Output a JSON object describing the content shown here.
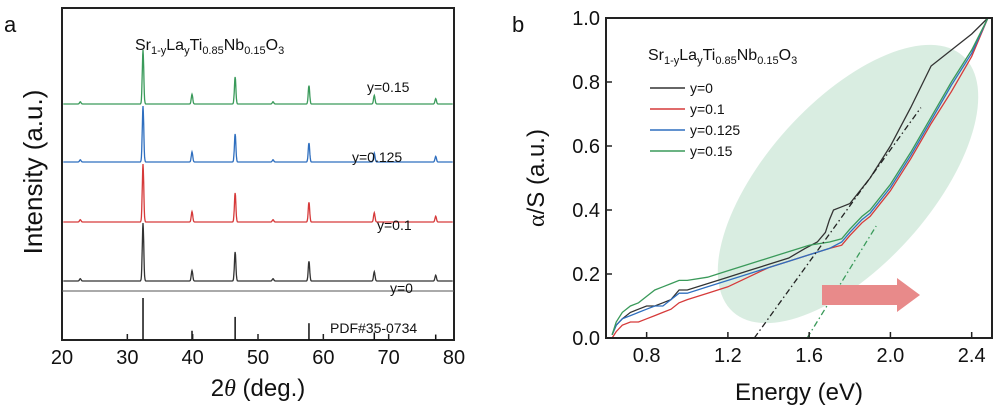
{
  "figure": {
    "panel_a_label": "a",
    "panel_b_label": "b"
  },
  "chart_data": [
    {
      "type": "line",
      "panel": "a",
      "title_parts": {
        "base": "Sr",
        "s1": "1-y",
        "m1": "La",
        "s2": "y",
        "m2": "Ti",
        "s3": "0.85",
        "m3": "Nb",
        "s4": "0.15",
        "m4": "O",
        "s5": "3"
      },
      "xlabel_theta": "θ",
      "xlabel_prefix": "2",
      "xlabel_suffix": " (deg.)",
      "ylabel": "Intensity (a.u.)",
      "xlim": [
        20,
        80
      ],
      "xticks": [
        "20",
        "30",
        "40",
        "50",
        "60",
        "70",
        "80"
      ],
      "grid": false,
      "peaks": [
        {
          "x": 22.8,
          "rel": 0.04
        },
        {
          "x": 32.4,
          "rel": 1.0
        },
        {
          "x": 39.9,
          "rel": 0.18
        },
        {
          "x": 46.5,
          "rel": 0.5
        },
        {
          "x": 52.3,
          "rel": 0.04
        },
        {
          "x": 57.8,
          "rel": 0.34
        },
        {
          "x": 67.8,
          "rel": 0.16
        },
        {
          "x": 77.2,
          "rel": 0.1
        }
      ],
      "series": [
        {
          "name": "y=0.15",
          "color": "#3a9a5a"
        },
        {
          "name": "y=0.125",
          "color": "#2f6fbf"
        },
        {
          "name": "y=0.1",
          "color": "#d63a3a"
        },
        {
          "name": "y=0",
          "color": "#333333"
        }
      ],
      "reference": {
        "name": "PDF#35-0734",
        "color": "#111111",
        "lines": [
          {
            "x": 32.4,
            "rel": 1.0
          },
          {
            "x": 39.9,
            "rel": 0.22
          },
          {
            "x": 46.5,
            "rel": 0.55
          },
          {
            "x": 57.8,
            "rel": 0.4
          },
          {
            "x": 67.8,
            "rel": 0.18
          },
          {
            "x": 77.2,
            "rel": 0.13
          }
        ]
      }
    },
    {
      "type": "line",
      "panel": "b",
      "title_parts": {
        "base": "Sr",
        "s1": "1-y",
        "m1": "La",
        "s2": "y",
        "m2": "Ti",
        "s3": "0.85",
        "m3": "Nb",
        "s4": "0.15",
        "m4": "O",
        "s5": "3"
      },
      "xlabel": "Energy (eV)",
      "ylabel_alpha": "α",
      "ylabel_rest": "/S (a.u.)",
      "xlim": [
        0.6,
        2.5
      ],
      "ylim": [
        0,
        1.0
      ],
      "xticks": [
        0.8,
        1.2,
        1.6,
        2.0,
        2.4
      ],
      "xtick_labels": [
        "0.8",
        "1.2",
        "1.6",
        "2.0",
        "2.4"
      ],
      "yticks": [
        0,
        0.2,
        0.4,
        0.6,
        0.8,
        1.0
      ],
      "ytick_labels": [
        "0.0",
        "0.2",
        "0.4",
        "0.6",
        "0.8",
        "1.0"
      ],
      "legend_position": "top-left",
      "highlight_color": "#cfe8da",
      "arrow_color": "#e88a8a",
      "series": [
        {
          "name": "y=0",
          "color": "#333333",
          "x": [
            0.63,
            0.65,
            0.68,
            0.72,
            0.76,
            0.8,
            0.84,
            0.88,
            0.92,
            0.96,
            1.0,
            1.1,
            1.2,
            1.3,
            1.4,
            1.5,
            1.58,
            1.64,
            1.68,
            1.7,
            1.72,
            1.76,
            1.8,
            1.9,
            2.0,
            2.1,
            2.2,
            2.3,
            2.4,
            2.48
          ],
          "y": [
            0.01,
            0.04,
            0.06,
            0.08,
            0.09,
            0.1,
            0.1,
            0.11,
            0.12,
            0.15,
            0.15,
            0.17,
            0.19,
            0.21,
            0.23,
            0.25,
            0.28,
            0.3,
            0.33,
            0.37,
            0.4,
            0.41,
            0.42,
            0.5,
            0.6,
            0.72,
            0.85,
            0.9,
            0.95,
            1.0
          ]
        },
        {
          "name": "y=0.1",
          "color": "#d63a3a",
          "x": [
            0.63,
            0.65,
            0.68,
            0.72,
            0.76,
            0.8,
            0.84,
            0.88,
            0.92,
            0.96,
            1.0,
            1.1,
            1.2,
            1.3,
            1.4,
            1.5,
            1.6,
            1.7,
            1.76,
            1.8,
            1.86,
            1.9,
            2.0,
            2.1,
            2.2,
            2.3,
            2.4,
            2.48
          ],
          "y": [
            0.0,
            0.02,
            0.04,
            0.05,
            0.05,
            0.06,
            0.07,
            0.08,
            0.09,
            0.11,
            0.12,
            0.14,
            0.16,
            0.19,
            0.22,
            0.24,
            0.26,
            0.28,
            0.29,
            0.32,
            0.36,
            0.38,
            0.46,
            0.56,
            0.67,
            0.77,
            0.88,
            1.0
          ]
        },
        {
          "name": "y=0.125",
          "color": "#2f6fbf",
          "x": [
            0.63,
            0.65,
            0.68,
            0.72,
            0.76,
            0.8,
            0.84,
            0.88,
            0.92,
            0.96,
            1.0,
            1.1,
            1.2,
            1.3,
            1.4,
            1.5,
            1.6,
            1.7,
            1.76,
            1.8,
            1.86,
            1.9,
            2.0,
            2.1,
            2.2,
            2.3,
            2.4,
            2.48
          ],
          "y": [
            0.01,
            0.04,
            0.06,
            0.07,
            0.08,
            0.09,
            0.1,
            0.1,
            0.12,
            0.14,
            0.14,
            0.16,
            0.18,
            0.2,
            0.22,
            0.24,
            0.26,
            0.28,
            0.3,
            0.33,
            0.37,
            0.39,
            0.47,
            0.57,
            0.68,
            0.79,
            0.89,
            1.0
          ]
        },
        {
          "name": "y=0.15",
          "color": "#3a9a5a",
          "x": [
            0.63,
            0.65,
            0.68,
            0.72,
            0.76,
            0.8,
            0.84,
            0.88,
            0.92,
            0.96,
            1.0,
            1.1,
            1.2,
            1.3,
            1.4,
            1.5,
            1.6,
            1.7,
            1.76,
            1.8,
            1.86,
            1.9,
            2.0,
            2.1,
            2.2,
            2.3,
            2.4,
            2.48
          ],
          "y": [
            0.01,
            0.05,
            0.08,
            0.1,
            0.11,
            0.13,
            0.15,
            0.16,
            0.17,
            0.18,
            0.18,
            0.19,
            0.21,
            0.23,
            0.25,
            0.27,
            0.29,
            0.3,
            0.31,
            0.34,
            0.38,
            0.4,
            0.48,
            0.58,
            0.69,
            0.8,
            0.9,
            1.0
          ]
        }
      ],
      "tangent_lines": [
        {
          "series": "y=0",
          "color": "#222222",
          "x0": 1.33,
          "y0": 0.0,
          "x1": 2.15,
          "y1": 0.72
        },
        {
          "series": "y=0.15",
          "color": "#3a9a5a",
          "x0": 1.59,
          "y0": 0.0,
          "x1": 1.93,
          "y1": 0.35
        }
      ]
    }
  ]
}
